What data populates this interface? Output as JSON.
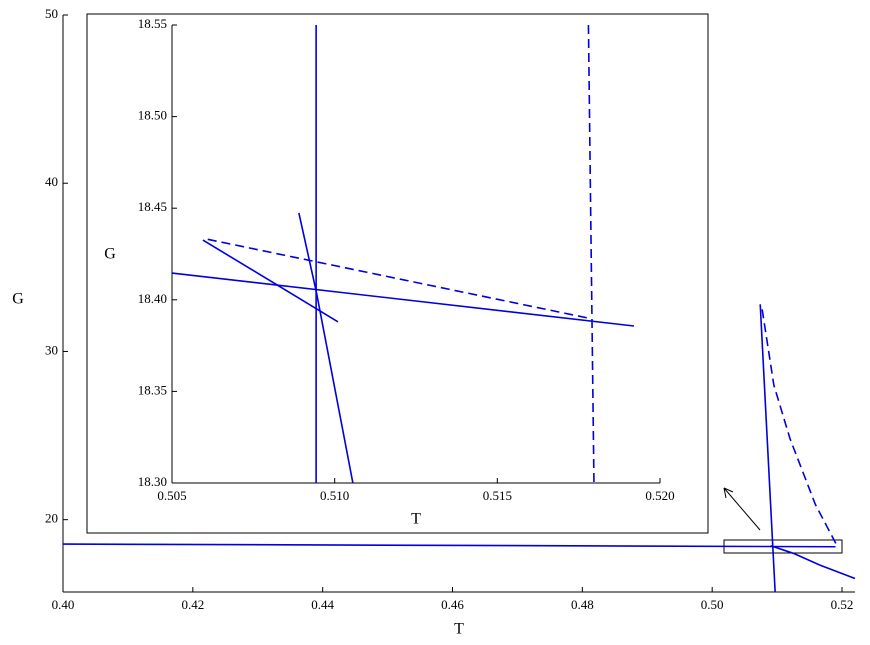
{
  "chart_data": [
    {
      "type": "line",
      "xlabel": "T",
      "ylabel": "G",
      "xlim": [
        0.4,
        0.522
      ],
      "ylim": [
        15.7,
        50
      ],
      "xticks": [
        {
          "value": 0.4,
          "label": "0.40"
        },
        0.42,
        0.44,
        0.46,
        0.48,
        {
          "value": 0.5,
          "label": "0.50"
        },
        0.52
      ],
      "yticks": [
        20,
        30,
        40,
        50
      ],
      "series": [
        {
          "color": "#0000e0",
          "dashed": false,
          "x": [
            0.4,
            0.519
          ],
          "values": [
            18.55,
            18.39
          ]
        },
        {
          "color": "#0000e0",
          "dashed": false,
          "x": [
            0.5074,
            0.5097
          ],
          "values": [
            32.8,
            15.7
          ]
        },
        {
          "color": "#0000e0",
          "dashed": false,
          "x": [
            0.509,
            0.5125,
            0.5166,
            0.522
          ],
          "values": [
            18.45,
            18.0,
            17.3,
            16.5
          ]
        },
        {
          "color": "#0000e0",
          "dashed": true,
          "x": [
            0.5077,
            0.5095,
            0.512,
            0.5159,
            0.5194
          ],
          "values": [
            32.5,
            28.0,
            24.8,
            20.9,
            18.33
          ]
        }
      ]
    },
    {
      "type": "line",
      "xlabel": "T",
      "ylabel": "G",
      "xlim": [
        0.505,
        0.52
      ],
      "ylim": [
        18.3,
        18.55
      ],
      "xticks": [
        0.505,
        {
          "value": 0.51,
          "label": "0.510"
        },
        0.515,
        {
          "value": 0.52,
          "label": "0.520"
        }
      ],
      "yticks": [
        {
          "value": 18.3,
          "label": "18.30"
        },
        18.35,
        {
          "value": 18.4,
          "label": "18.40"
        },
        18.45,
        {
          "value": 18.5,
          "label": "18.50"
        },
        18.55
      ],
      "series": [
        {
          "color": "#0000e0",
          "dashed": false,
          "x": [
            0.505,
            0.5192
          ],
          "values": [
            18.4146,
            18.3857
          ]
        },
        {
          "color": "#0000e0",
          "dashed": false,
          "x": [
            0.50943,
            0.50943
          ],
          "values": [
            18.55,
            18.3
          ]
        },
        {
          "color": "#0000e0",
          "dashed": false,
          "x": [
            0.50595,
            0.5101
          ],
          "values": [
            18.4326,
            18.388
          ]
        },
        {
          "color": "#0000e0",
          "dashed": false,
          "x": [
            0.5089,
            0.50944,
            0.51056
          ],
          "values": [
            18.4474,
            18.404,
            18.3
          ]
        },
        {
          "color": "#0000e0",
          "dashed": true,
          "x": [
            0.5061,
            0.5178
          ],
          "values": [
            18.433,
            18.39
          ]
        },
        {
          "color": "#0000e0",
          "dashed": true,
          "x": [
            0.5178,
            0.51797
          ],
          "values": [
            18.55,
            18.3
          ]
        }
      ]
    }
  ]
}
